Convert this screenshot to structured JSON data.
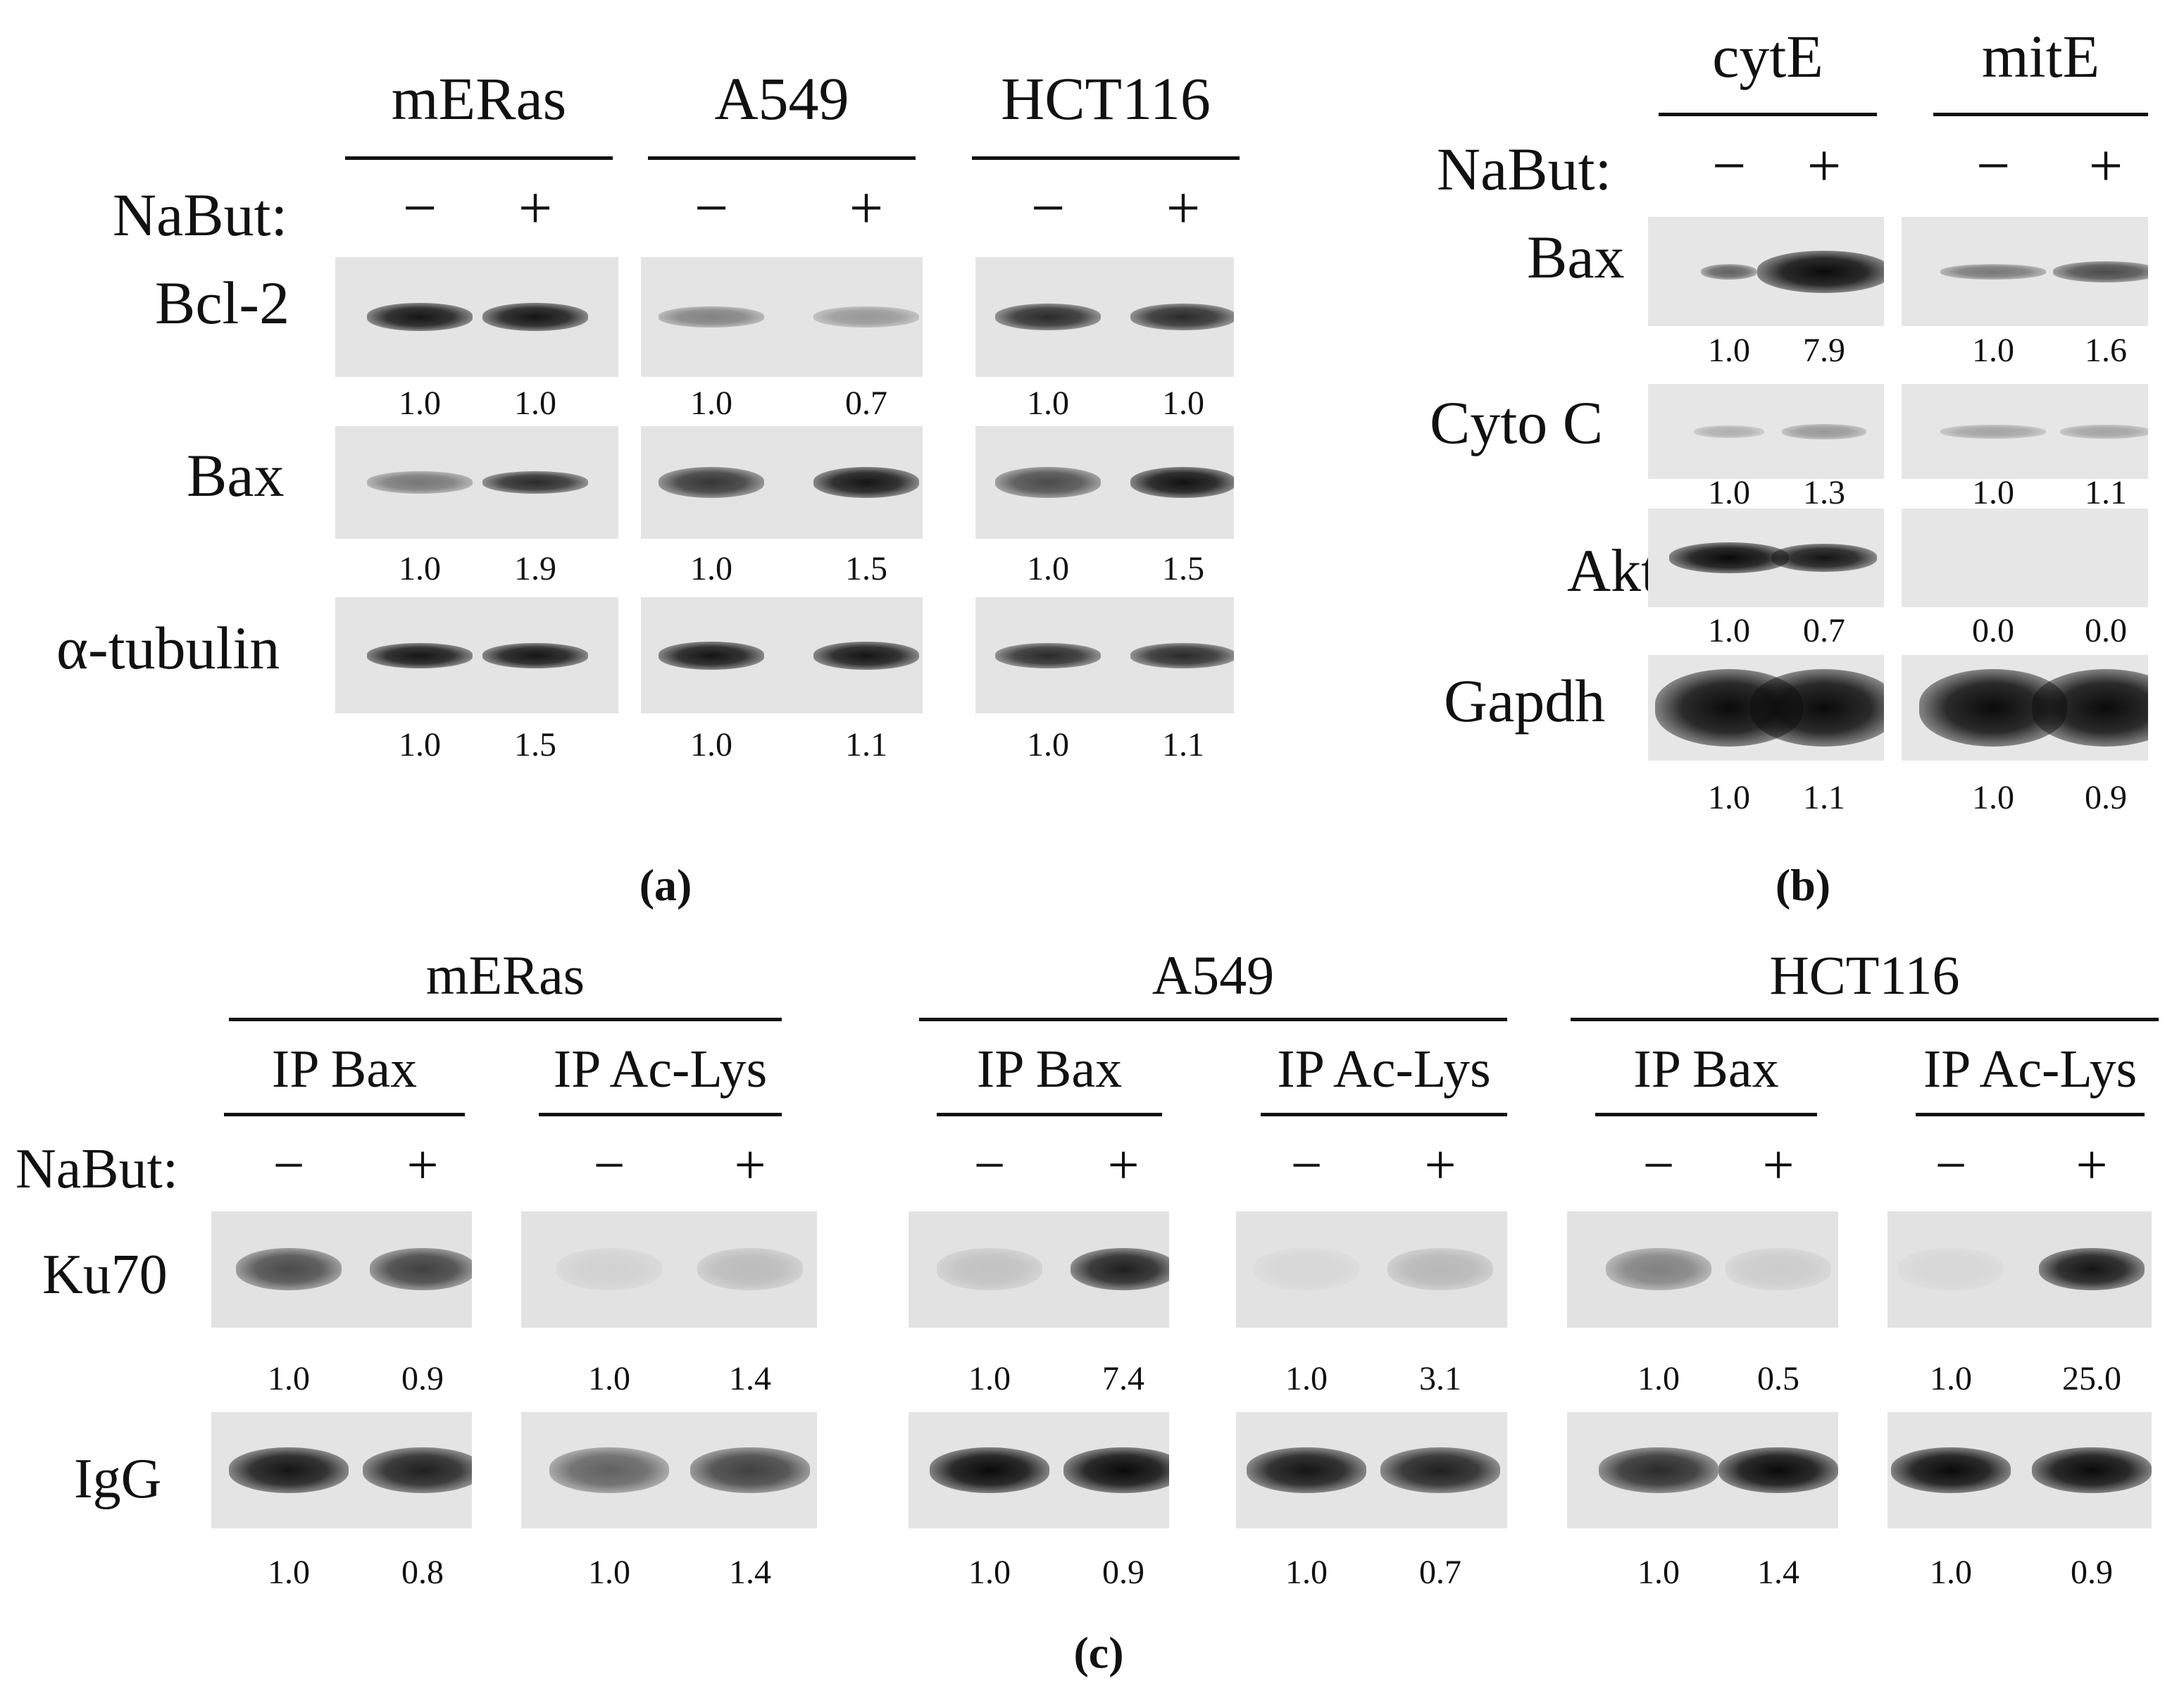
{
  "treatment_label": "NaBut:",
  "minus": "−",
  "plus": "+",
  "panel_a": {
    "caption": "(a)",
    "cell_lines": [
      "mERas",
      "A549",
      "HCT116"
    ],
    "proteins": [
      "Bcl-2",
      "Bax",
      "α-tubulin"
    ],
    "values": {
      "bcl2": [
        [
          "1.0",
          "1.0"
        ],
        [
          "1.0",
          "0.7"
        ],
        [
          "1.0",
          "1.0"
        ]
      ],
      "bax": [
        [
          "1.0",
          "1.9"
        ],
        [
          "1.0",
          "1.5"
        ],
        [
          "1.0",
          "1.5"
        ]
      ],
      "tubulin": [
        [
          "1.0",
          "1.5"
        ],
        [
          "1.0",
          "1.1"
        ],
        [
          "1.0",
          "1.1"
        ]
      ]
    }
  },
  "panel_b": {
    "caption": "(b)",
    "fractions": [
      "cytE",
      "mitE"
    ],
    "proteins": [
      "Bax",
      "Cyto C",
      "Akt",
      "Gapdh"
    ],
    "values": {
      "bax": [
        [
          "1.0",
          "7.9"
        ],
        [
          "1.0",
          "1.6"
        ]
      ],
      "cytoc": [
        [
          "1.0",
          "1.3"
        ],
        [
          "1.0",
          "1.1"
        ]
      ],
      "akt": [
        [
          "1.0",
          "0.7"
        ],
        [
          "0.0",
          "0.0"
        ]
      ],
      "gapdh": [
        [
          "1.0",
          "1.1"
        ],
        [
          "1.0",
          "0.9"
        ]
      ]
    }
  },
  "panel_c": {
    "caption": "(c)",
    "cell_lines": [
      "mERas",
      "A549",
      "HCT116"
    ],
    "ip_labels": [
      "IP Bax",
      "IP Ac-Lys"
    ],
    "proteins": [
      "Ku70",
      "IgG"
    ],
    "values": {
      "ku70": [
        [
          "1.0",
          "0.9"
        ],
        [
          "1.0",
          "1.4"
        ],
        [
          "1.0",
          "7.4"
        ],
        [
          "1.0",
          "3.1"
        ],
        [
          "1.0",
          "0.5"
        ],
        [
          "1.0",
          "25.0"
        ]
      ],
      "igg": [
        [
          "1.0",
          "0.8"
        ],
        [
          "1.0",
          "1.4"
        ],
        [
          "1.0",
          "0.9"
        ],
        [
          "1.0",
          "0.7"
        ],
        [
          "1.0",
          "1.4"
        ],
        [
          "1.0",
          "0.9"
        ]
      ]
    }
  }
}
